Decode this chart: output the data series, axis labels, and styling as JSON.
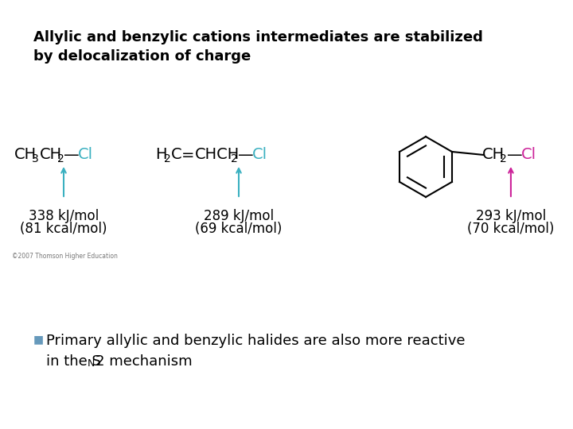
{
  "background_color": "#ffffff",
  "title_line1": "Allylic and benzylic cations intermediates are stabilized",
  "title_line2": "by delocalization of charge",
  "title_fontsize": 13,
  "teal_color": "#3ab0c0",
  "magenta_color": "#cc2299",
  "black_color": "#000000",
  "bullet_color": "#6699bb",
  "mol1_energy1": "338 kJ/mol",
  "mol1_energy2": "(81 kcal/mol)",
  "mol2_energy1": "289 kJ/mol",
  "mol2_energy2": "(69 kcal/mol)",
  "mol3_energy1": "293 kJ/mol",
  "mol3_energy2": "(70 kcal/mol)",
  "copyright_text": "©2007 Thomson Higher Education",
  "bullet_text1": "Primary allylic and benzylic halides are also more reactive",
  "bullet_text2a": "in the S",
  "bullet_text2b": "N",
  "bullet_text2c": "2 mechanism",
  "formula_fontsize": 14,
  "energy_fontsize": 12,
  "text_fontsize": 13
}
